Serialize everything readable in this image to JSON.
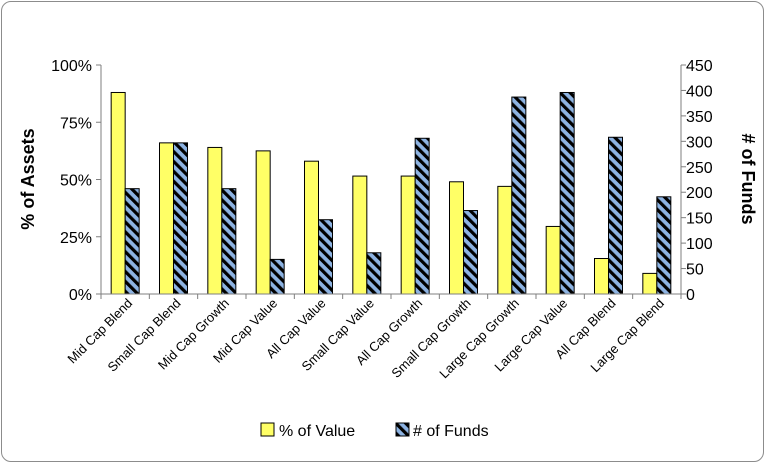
{
  "chart_data": {
    "type": "bar",
    "title": "",
    "categories": [
      "Mid Cap Blend",
      "Small Cap Blend",
      "Mid Cap Growth",
      "Mid Cap Value",
      "All Cap Value",
      "Small Cap Value",
      "All Cap Growth",
      "Small Cap Growth",
      "Large Cap Growth",
      "Large Cap Value",
      "All Cap Blend",
      "Large Cap Blend"
    ],
    "series": [
      {
        "name": "% of Value",
        "axis": "left",
        "color": "#ffff66",
        "pattern": "solid",
        "values": [
          88,
          66,
          64,
          62.5,
          58,
          51.5,
          51.5,
          49,
          47,
          29.5,
          15.5,
          9
        ]
      },
      {
        "name": "# of Funds",
        "axis": "right",
        "color": "#8db3e2",
        "pattern": "black-diagonal-stripes",
        "values": [
          207,
          297,
          207,
          68,
          146,
          81,
          306,
          164,
          387,
          396,
          308,
          191
        ]
      }
    ],
    "y_left": {
      "label": "% of Assets",
      "min": 0,
      "max": 100,
      "ticks": [
        "0%",
        "25%",
        "50%",
        "75%",
        "100%"
      ],
      "tick_values": [
        0,
        25,
        50,
        75,
        100
      ]
    },
    "y_right": {
      "label": "# of Funds",
      "min": 0,
      "max": 450,
      "ticks": [
        "0",
        "50",
        "100",
        "150",
        "200",
        "250",
        "300",
        "350",
        "400",
        "450"
      ],
      "tick_values": [
        0,
        50,
        100,
        150,
        200,
        250,
        300,
        350,
        400,
        450
      ]
    },
    "grid": false,
    "legend_placement": "bottom"
  }
}
